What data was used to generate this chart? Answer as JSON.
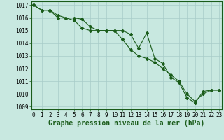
{
  "series1": [
    1017.0,
    1016.6,
    1016.6,
    1016.2,
    1016.0,
    1016.0,
    1015.9,
    1015.3,
    1015.0,
    1015.0,
    1015.0,
    1015.0,
    1014.7,
    1013.6,
    1014.8,
    1012.8,
    1012.4,
    1011.3,
    1010.9,
    1009.7,
    1009.3,
    1010.2,
    1010.3,
    1010.3
  ],
  "series2": [
    1017.0,
    1016.6,
    1016.6,
    1016.0,
    1016.0,
    1015.8,
    1015.2,
    1015.0,
    1015.0,
    1015.0,
    1015.0,
    1014.3,
    1013.5,
    1013.0,
    1012.8,
    1012.5,
    1012.0,
    1011.5,
    1011.0,
    1010.0,
    1009.4,
    1010.0,
    1010.3,
    1010.3
  ],
  "x": [
    0,
    1,
    2,
    3,
    4,
    5,
    6,
    7,
    8,
    9,
    10,
    11,
    12,
    13,
    14,
    15,
    16,
    17,
    18,
    19,
    20,
    21,
    22,
    23
  ],
  "xlim": [
    -0.3,
    23.3
  ],
  "ylim": [
    1008.8,
    1017.3
  ],
  "yticks": [
    1009,
    1010,
    1011,
    1012,
    1013,
    1014,
    1015,
    1016,
    1017
  ],
  "xticks": [
    0,
    1,
    2,
    3,
    4,
    5,
    6,
    7,
    8,
    9,
    10,
    11,
    12,
    13,
    14,
    15,
    16,
    17,
    18,
    19,
    20,
    21,
    22,
    23
  ],
  "line_color": "#1a5c1a",
  "bg_color": "#c8e8e0",
  "grid_color": "#a8ccc8",
  "xlabel": "Graphe pression niveau de la mer (hPa)",
  "xlabel_fontsize": 7,
  "tick_fontsize": 5.5,
  "marker": "D",
  "marker_size": 2.0,
  "linewidth": 0.8
}
